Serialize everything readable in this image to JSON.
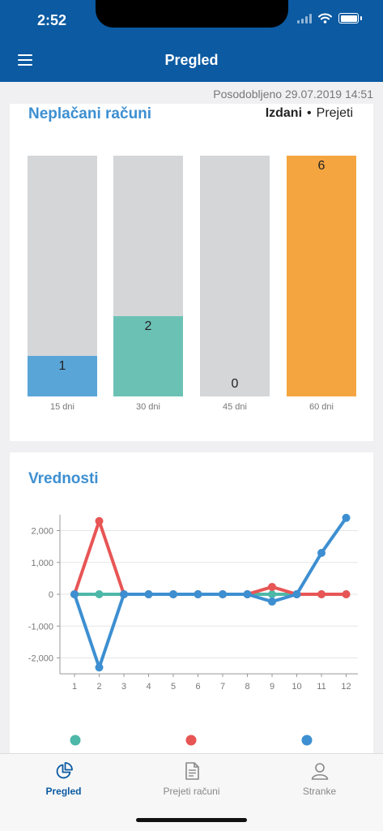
{
  "status_bar": {
    "time": "2:52"
  },
  "header": {
    "title": "Pregled"
  },
  "updated": {
    "label": "Posodobljeno",
    "datetime": "29.07.2019 14:51"
  },
  "unpaid": {
    "title": "Neplačani računi",
    "tabs": [
      {
        "label": "Izdani",
        "active": true
      },
      {
        "label": "Prejeti",
        "active": false
      }
    ],
    "separator": "•",
    "max": 6,
    "bars": [
      {
        "label": "15 dni",
        "value": 1,
        "color": "#5aa5d8"
      },
      {
        "label": "30 dni",
        "value": 2,
        "color": "#6cc1b5"
      },
      {
        "label": "45 dni",
        "value": 0,
        "color": "#9aa0a6"
      },
      {
        "label": "60 dni",
        "value": 6,
        "color": "#f5a540"
      }
    ]
  },
  "chart_data": {
    "type": "line",
    "title": "Vrednosti",
    "x": [
      1,
      2,
      3,
      4,
      5,
      6,
      7,
      8,
      9,
      10,
      11,
      12
    ],
    "ylim": [
      -2500,
      2500
    ],
    "yticks": [
      2000,
      1000,
      0,
      -1000,
      -2000
    ],
    "ytick_labels": [
      "2,000",
      "1,000",
      "0",
      "-1,000",
      "-2,000"
    ],
    "grid": true,
    "legend": "bottom",
    "series": [
      {
        "color": "#4db8a8",
        "values": [
          0,
          0,
          0,
          0,
          0,
          0,
          0,
          0,
          0,
          0,
          0,
          0
        ]
      },
      {
        "color": "#e85555",
        "values": [
          0,
          2300,
          0,
          0,
          0,
          0,
          0,
          0,
          230,
          0,
          0,
          0
        ]
      },
      {
        "color": "#3d8fd1",
        "values": [
          0,
          -2300,
          0,
          0,
          0,
          0,
          0,
          0,
          -230,
          0,
          1300,
          2400
        ]
      }
    ]
  },
  "tabbar": {
    "items": [
      {
        "label": "Pregled",
        "icon": "pie-chart-icon",
        "active": true
      },
      {
        "label": "Prejeti računi",
        "icon": "document-icon",
        "active": false
      },
      {
        "label": "Stranke",
        "icon": "user-icon",
        "active": false
      }
    ],
    "active_color": "#0b5aa2",
    "inactive_color": "#888888"
  }
}
